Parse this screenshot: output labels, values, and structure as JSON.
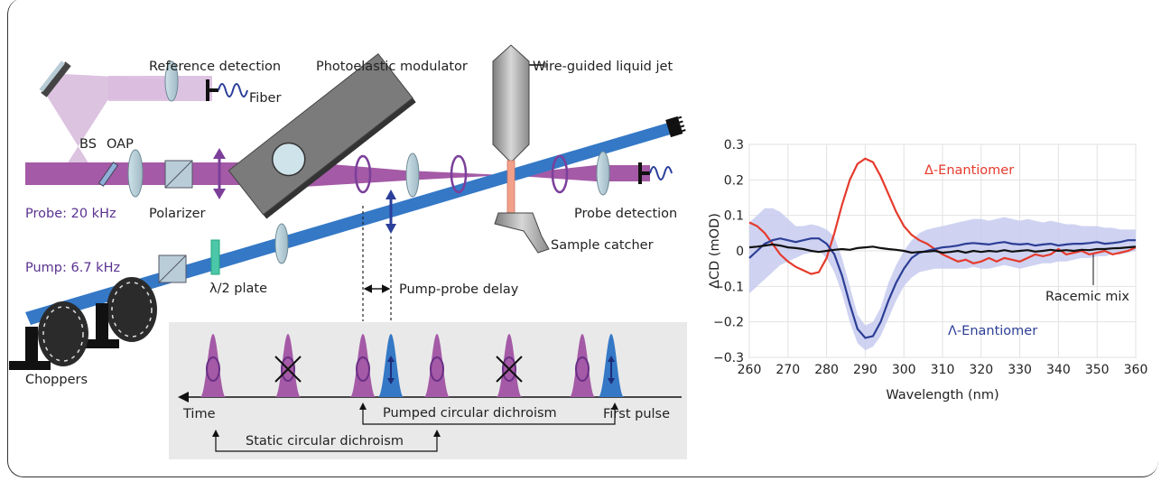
{
  "setup": {
    "reference_detection": "Reference detection",
    "photoelastic_modulator": "Photoelastic modulator",
    "liquid_jet": "Wire-guided liquid jet",
    "fiber": "Fiber",
    "bs": "BS",
    "oap": "OAP",
    "polarizer": "Polarizer",
    "probe_rate": "Probe: 20 kHz",
    "pump_rate": "Pump: 6.7 kHz",
    "half_wave_plate": "λ/2 plate",
    "pump_probe_delay": "Pump-probe delay",
    "probe_detection": "Probe detection",
    "sample_catcher": "Sample catcher",
    "choppers": "Choppers"
  },
  "timeline": {
    "time": "Time",
    "first_pulse": "First pulse",
    "pumped_cd": "Pumped circular dichroism",
    "static_cd": "Static circular dichroism"
  },
  "colors": {
    "probe": "#a45aa6",
    "pump": "#3478c6",
    "lambda_series": "#2c3e96",
    "delta_series": "#e53a2c",
    "racemic_series": "#111111",
    "band": "#c7cbee"
  },
  "chart_data": {
    "type": "line",
    "xlabel": "Wavelength (nm)",
    "ylabel": "ΔCD (mOD)",
    "xlim": [
      260,
      360
    ],
    "ylim": [
      -0.3,
      0.3
    ],
    "xticks": [
      260,
      270,
      280,
      290,
      300,
      310,
      320,
      330,
      340,
      350,
      360
    ],
    "yticks": [
      -0.3,
      -0.2,
      -0.1,
      0,
      0.1,
      0.2,
      0.3
    ],
    "ytick_labels": [
      "−0.3",
      "−0.2",
      "−0.1",
      "0",
      "0.1",
      "0.2",
      "0.3"
    ],
    "grid": true,
    "series": [
      {
        "name": "Δ-Enantiomer",
        "x": [
          260,
          262,
          264,
          266,
          268,
          270,
          272,
          274,
          276,
          278,
          280,
          282,
          284,
          286,
          288,
          290,
          292,
          294,
          296,
          298,
          300,
          302,
          304,
          306,
          308,
          310,
          312,
          314,
          316,
          318,
          320,
          322,
          324,
          326,
          328,
          330,
          332,
          334,
          336,
          338,
          340,
          342,
          344,
          346,
          348,
          350,
          352,
          354,
          356,
          358,
          360
        ],
        "y": [
          0.08,
          0.07,
          0.05,
          0.02,
          -0.01,
          -0.03,
          -0.045,
          -0.055,
          -0.065,
          -0.06,
          -0.02,
          0.05,
          0.13,
          0.2,
          0.245,
          0.26,
          0.25,
          0.21,
          0.16,
          0.11,
          0.07,
          0.045,
          0.03,
          0.02,
          0.005,
          -0.01,
          -0.02,
          -0.03,
          -0.025,
          -0.035,
          -0.03,
          -0.02,
          -0.03,
          -0.02,
          -0.025,
          -0.03,
          -0.02,
          -0.01,
          -0.015,
          -0.01,
          0.005,
          -0.01,
          -0.005,
          0.0,
          -0.01,
          -0.005,
          0.0,
          -0.01,
          -0.005,
          0.0,
          0.01
        ]
      },
      {
        "name": "Λ-Enantiomer",
        "x": [
          260,
          262,
          264,
          266,
          268,
          270,
          272,
          274,
          276,
          278,
          280,
          282,
          284,
          286,
          288,
          290,
          292,
          294,
          296,
          298,
          300,
          302,
          304,
          306,
          308,
          310,
          312,
          314,
          316,
          318,
          320,
          322,
          324,
          326,
          328,
          330,
          332,
          334,
          336,
          338,
          340,
          342,
          344,
          346,
          348,
          350,
          352,
          354,
          356,
          358,
          360
        ],
        "y": [
          -0.02,
          0.0,
          0.02,
          0.03,
          0.035,
          0.03,
          0.025,
          0.03,
          0.035,
          0.035,
          0.02,
          -0.01,
          -0.07,
          -0.15,
          -0.22,
          -0.245,
          -0.24,
          -0.2,
          -0.14,
          -0.09,
          -0.05,
          -0.02,
          -0.005,
          0.0,
          0.005,
          0.01,
          0.012,
          0.015,
          0.02,
          0.022,
          0.02,
          0.018,
          0.022,
          0.025,
          0.02,
          0.018,
          0.02,
          0.015,
          0.018,
          0.02,
          0.015,
          0.018,
          0.02,
          0.02,
          0.022,
          0.025,
          0.02,
          0.022,
          0.025,
          0.03,
          0.03
        ]
      },
      {
        "name": "Racemic mix",
        "x": [
          260,
          262,
          264,
          266,
          268,
          270,
          272,
          274,
          276,
          278,
          280,
          282,
          284,
          286,
          288,
          290,
          292,
          294,
          296,
          298,
          300,
          302,
          304,
          306,
          308,
          310,
          312,
          314,
          316,
          318,
          320,
          322,
          324,
          326,
          328,
          330,
          332,
          334,
          336,
          338,
          340,
          342,
          344,
          346,
          348,
          350,
          352,
          354,
          356,
          358,
          360
        ],
        "y": [
          0.01,
          0.012,
          0.015,
          0.018,
          0.015,
          0.01,
          0.008,
          0.005,
          0.0,
          -0.003,
          0.0,
          0.003,
          0.005,
          0.003,
          0.008,
          0.01,
          0.012,
          0.008,
          0.005,
          0.003,
          0.0,
          -0.005,
          -0.003,
          -0.002,
          0.0,
          -0.005,
          -0.003,
          0.0,
          -0.005,
          0.0,
          -0.003,
          0.0,
          -0.002,
          0.002,
          -0.002,
          0.0,
          0.002,
          -0.002,
          0.0,
          0.003,
          0.0,
          0.002,
          0.0,
          0.003,
          0.002,
          0.005,
          0.005,
          0.007,
          0.008,
          0.01,
          0.012
        ]
      }
    ],
    "band_lower": [
      -0.12,
      -0.1,
      -0.08,
      -0.06,
      -0.04,
      -0.03,
      -0.02,
      -0.01,
      -0.005,
      0.0,
      -0.02,
      -0.06,
      -0.12,
      -0.2,
      -0.26,
      -0.28,
      -0.27,
      -0.24,
      -0.19,
      -0.14,
      -0.1,
      -0.075,
      -0.06,
      -0.055,
      -0.05,
      -0.05,
      -0.05,
      -0.05,
      -0.05,
      -0.045,
      -0.05,
      -0.05,
      -0.045,
      -0.04,
      -0.045,
      -0.05,
      -0.045,
      -0.04,
      -0.035,
      -0.035,
      -0.03,
      -0.03,
      -0.025,
      -0.02,
      -0.02,
      -0.015,
      -0.015,
      -0.01,
      -0.01,
      -0.005,
      0.0
    ],
    "band_upper": [
      0.08,
      0.1,
      0.12,
      0.12,
      0.11,
      0.09,
      0.07,
      0.07,
      0.075,
      0.07,
      0.06,
      0.04,
      -0.02,
      -0.1,
      -0.18,
      -0.21,
      -0.2,
      -0.16,
      -0.09,
      -0.04,
      0.0,
      0.03,
      0.05,
      0.06,
      0.065,
      0.07,
      0.075,
      0.08,
      0.085,
      0.09,
      0.09,
      0.085,
      0.09,
      0.095,
      0.09,
      0.085,
      0.09,
      0.085,
      0.08,
      0.085,
      0.08,
      0.075,
      0.075,
      0.07,
      0.07,
      0.07,
      0.065,
      0.065,
      0.06,
      0.06,
      0.06
    ],
    "labels": {
      "delta": "Δ-Enantiomer",
      "lambda": "Λ-Enantiomer",
      "racemic": "Racemic mix"
    }
  }
}
